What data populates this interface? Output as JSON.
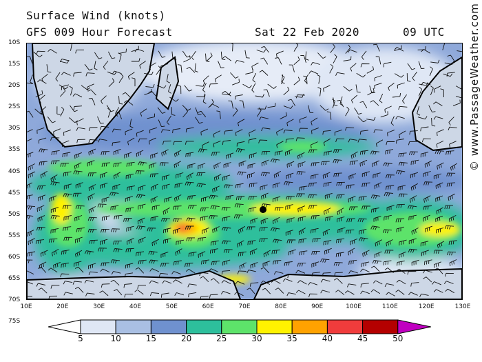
{
  "header": {
    "line1": "Surface Wind (knots)",
    "line2": "GFS 009 Hour Forecast",
    "date": "Sat 22 Feb 2020",
    "time": "09 UTC"
  },
  "copyright": "© www.PassageWeather.com",
  "axes": {
    "lat_labels": [
      "10S",
      "15S",
      "20S",
      "25S",
      "30S",
      "35S",
      "40S",
      "45S",
      "50S",
      "55S",
      "60S",
      "65S",
      "70S",
      "75S"
    ],
    "lon_labels": [
      "10E",
      "20E",
      "30E",
      "40E",
      "50E",
      "60E",
      "70E",
      "80E",
      "90E",
      "100E",
      "110E",
      "120E",
      "130E"
    ]
  },
  "legend": {
    "ticks": [
      "5",
      "10",
      "15",
      "20",
      "25",
      "30",
      "35",
      "40",
      "45",
      "50"
    ],
    "colors": [
      "#ffffff",
      "#dfe7f5",
      "#a9bfe3",
      "#6f91cf",
      "#2dbf9c",
      "#5de36a",
      "#fff200",
      "#ffa200",
      "#f03c3c",
      "#b40000",
      "#c000c0"
    ]
  }
}
